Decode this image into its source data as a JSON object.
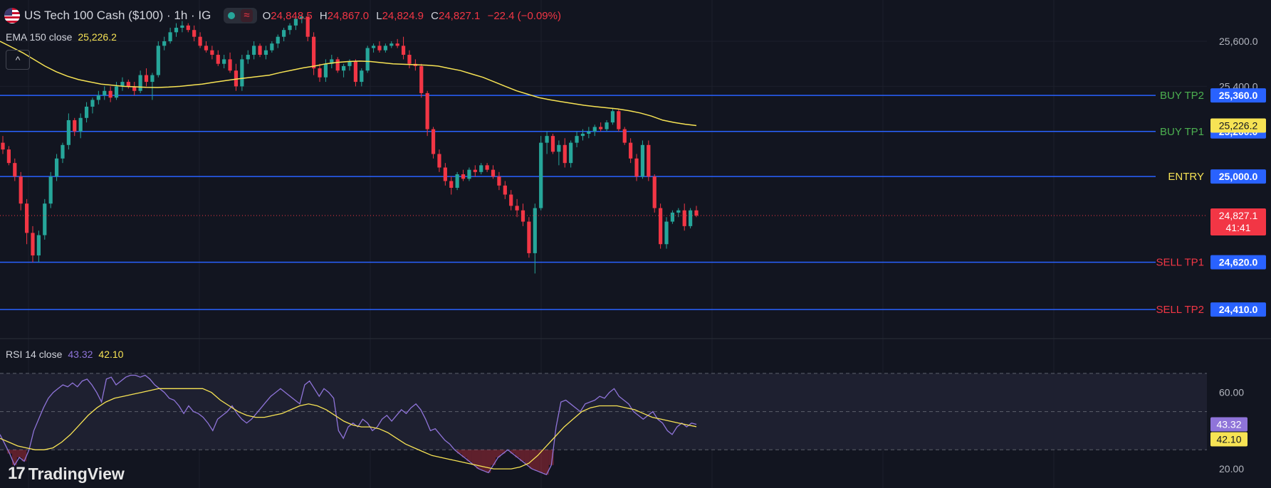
{
  "header": {
    "title": "US Tech 100 Cash ($100) · 1h · IG",
    "open_label": "O",
    "open": "24,848.5",
    "high_label": "H",
    "high": "24,867.0",
    "low_label": "L",
    "low": "24,824.9",
    "close_label": "C",
    "close": "24,827.1",
    "change": "−22.4 (−0.09%)",
    "wave_icon": "≈",
    "collapse_icon": "^"
  },
  "ema": {
    "label": "EMA 150 close",
    "value": "25,226.2"
  },
  "rsi": {
    "label": "RSI 14 close",
    "value": "43.32",
    "ma_value": "42.10"
  },
  "logo": {
    "mark": "17",
    "text": "TradingView"
  },
  "colors": {
    "bg": "#121520",
    "up": "#26a69a",
    "down": "#f23645",
    "level": "#2962ff",
    "ema": "#f7e354",
    "rsi": "#8f74d9",
    "rsi_ma": "#f7e354"
  },
  "chart_data": {
    "type": "candlestick",
    "timeframe": "1h",
    "ylim": [
      24300,
      25720
    ],
    "y_ticks": [
      25600,
      25400
    ],
    "y_tick_labels": [
      "25,600.0",
      "25,400.0"
    ],
    "levels": [
      {
        "name": "BUY TP2",
        "value": 25360,
        "label": "25,360.0",
        "name_color": "#4caf50"
      },
      {
        "name": "BUY TP1",
        "value": 25200,
        "label": "25,200.0",
        "name_color": "#4caf50"
      },
      {
        "name": "ENTRY",
        "value": 25000,
        "label": "25,000.0",
        "name_color": "#f7e354"
      },
      {
        "name": "SELL TP1",
        "value": 24620,
        "label": "24,620.0",
        "name_color": "#f23645"
      },
      {
        "name": "SELL TP2",
        "value": 24410,
        "label": "24,410.0",
        "name_color": "#f23645"
      }
    ],
    "ema_label": "25,226.2",
    "ema_value": 25226.2,
    "last_price": 24827.1,
    "last_price_label": "24,827.1",
    "countdown": "41:41",
    "candles": [
      [
        25150,
        25180,
        25100,
        25120
      ],
      [
        25120,
        25135,
        25050,
        25060
      ],
      [
        25060,
        25080,
        24980,
        25000
      ],
      [
        25000,
        25020,
        24850,
        24880
      ],
      [
        24880,
        24900,
        24700,
        24750
      ],
      [
        24750,
        24780,
        24620,
        24650
      ],
      [
        24650,
        24760,
        24620,
        24740
      ],
      [
        24740,
        24900,
        24720,
        24880
      ],
      [
        24880,
        25020,
        24860,
        25000
      ],
      [
        25000,
        25100,
        24980,
        25080
      ],
      [
        25080,
        25150,
        25060,
        25140
      ],
      [
        25140,
        25280,
        25120,
        25250
      ],
      [
        25250,
        25260,
        25180,
        25200
      ],
      [
        25200,
        25280,
        25170,
        25260
      ],
      [
        25260,
        25330,
        25240,
        25310
      ],
      [
        25310,
        25350,
        25280,
        25340
      ],
      [
        25340,
        25380,
        25320,
        25360
      ],
      [
        25360,
        25400,
        25340,
        25380
      ],
      [
        25380,
        25400,
        25330,
        25350
      ],
      [
        25350,
        25420,
        25340,
        25400
      ],
      [
        25400,
        25440,
        25380,
        25420
      ],
      [
        25420,
        25430,
        25390,
        25400
      ],
      [
        25400,
        25420,
        25360,
        25380
      ],
      [
        25380,
        25470,
        25370,
        25450
      ],
      [
        25450,
        25480,
        25400,
        25420
      ],
      [
        25420,
        25460,
        25340,
        25450
      ],
      [
        25450,
        25600,
        25440,
        25580
      ],
      [
        25580,
        25620,
        25560,
        25600
      ],
      [
        25600,
        25660,
        25590,
        25640
      ],
      [
        25640,
        25680,
        25620,
        25660
      ],
      [
        25660,
        25690,
        25640,
        25670
      ],
      [
        25670,
        25680,
        25640,
        25650
      ],
      [
        25650,
        25670,
        25600,
        25620
      ],
      [
        25620,
        25640,
        25570,
        25580
      ],
      [
        25580,
        25600,
        25550,
        25560
      ],
      [
        25560,
        25580,
        25520,
        25540
      ],
      [
        25540,
        25560,
        25490,
        25500
      ],
      [
        25500,
        25540,
        25480,
        25520
      ],
      [
        25520,
        25550,
        25460,
        25470
      ],
      [
        25470,
        25500,
        25380,
        25400
      ],
      [
        25400,
        25540,
        25380,
        25520
      ],
      [
        25520,
        25560,
        25500,
        25540
      ],
      [
        25540,
        25600,
        25520,
        25580
      ],
      [
        25580,
        25590,
        25530,
        25540
      ],
      [
        25540,
        25580,
        25520,
        25560
      ],
      [
        25560,
        25600,
        25550,
        25590
      ],
      [
        25590,
        25630,
        25570,
        25620
      ],
      [
        25620,
        25660,
        25600,
        25650
      ],
      [
        25650,
        25680,
        25630,
        25670
      ],
      [
        25670,
        25710,
        25650,
        25700
      ],
      [
        25700,
        25720,
        25680,
        25710
      ],
      [
        25710,
        25700,
        25600,
        25620
      ],
      [
        25620,
        25640,
        25450,
        25480
      ],
      [
        25480,
        25500,
        25420,
        25440
      ],
      [
        25440,
        25520,
        25420,
        25500
      ],
      [
        25500,
        25540,
        25480,
        25520
      ],
      [
        25520,
        25530,
        25460,
        25470
      ],
      [
        25470,
        25500,
        25440,
        25490
      ],
      [
        25490,
        25520,
        25470,
        25510
      ],
      [
        25510,
        25520,
        25400,
        25420
      ],
      [
        25420,
        25480,
        25400,
        25470
      ],
      [
        25470,
        25580,
        25460,
        25570
      ],
      [
        25570,
        25590,
        25550,
        25580
      ],
      [
        25580,
        25600,
        25550,
        25560
      ],
      [
        25560,
        25590,
        25550,
        25580
      ],
      [
        25580,
        25600,
        25570,
        25590
      ],
      [
        25590,
        25610,
        25570,
        25580
      ],
      [
        25580,
        25620,
        25520,
        25540
      ],
      [
        25540,
        25560,
        25480,
        25500
      ],
      [
        25500,
        25520,
        25470,
        25490
      ],
      [
        25490,
        25500,
        25350,
        25370
      ],
      [
        25370,
        25380,
        25180,
        25210
      ],
      [
        25210,
        25220,
        25080,
        25100
      ],
      [
        25100,
        25120,
        25020,
        25040
      ],
      [
        25040,
        25060,
        24960,
        24980
      ],
      [
        24980,
        25000,
        24920,
        24950
      ],
      [
        24950,
        25020,
        24940,
        25010
      ],
      [
        25010,
        25030,
        24980,
        24990
      ],
      [
        24990,
        25040,
        24980,
        25030
      ],
      [
        25030,
        25050,
        25000,
        25020
      ],
      [
        25020,
        25060,
        25010,
        25050
      ],
      [
        25050,
        25060,
        25020,
        25030
      ],
      [
        25030,
        25050,
        24990,
        25000
      ],
      [
        25000,
        25020,
        24940,
        24960
      ],
      [
        24960,
        24980,
        24900,
        24920
      ],
      [
        24920,
        24940,
        24850,
        24870
      ],
      [
        24870,
        24900,
        24820,
        24850
      ],
      [
        24850,
        24880,
        24780,
        24800
      ],
      [
        24800,
        24820,
        24640,
        24660
      ],
      [
        24660,
        24880,
        24570,
        24860
      ],
      [
        24860,
        25180,
        24850,
        25150
      ],
      [
        25150,
        25200,
        25100,
        25180
      ],
      [
        25180,
        25190,
        25100,
        25110
      ],
      [
        25110,
        25160,
        25050,
        25140
      ],
      [
        25140,
        25170,
        25040,
        25060
      ],
      [
        25060,
        25160,
        25040,
        25150
      ],
      [
        25150,
        25200,
        25130,
        25180
      ],
      [
        25180,
        25210,
        25160,
        25190
      ],
      [
        25190,
        25220,
        25170,
        25200
      ],
      [
        25200,
        25230,
        25180,
        25220
      ],
      [
        25220,
        25240,
        25200,
        25210
      ],
      [
        25210,
        25250,
        25200,
        25240
      ],
      [
        25240,
        25300,
        25230,
        25290
      ],
      [
        25290,
        25300,
        25200,
        25210
      ],
      [
        25210,
        25220,
        25140,
        25150
      ],
      [
        25150,
        25170,
        25060,
        25080
      ],
      [
        25080,
        25100,
        24980,
        25000
      ],
      [
        25000,
        25160,
        24990,
        25140
      ],
      [
        25140,
        25160,
        24980,
        25000
      ],
      [
        25000,
        25010,
        24840,
        24860
      ],
      [
        24860,
        24880,
        24680,
        24700
      ],
      [
        24700,
        24820,
        24680,
        24800
      ],
      [
        24800,
        24850,
        24790,
        24840
      ],
      [
        24840,
        24860,
        24820,
        24850
      ],
      [
        24850,
        24880,
        24760,
        24780
      ],
      [
        24780,
        24860,
        24770,
        24850
      ],
      [
        24850,
        24870,
        24820,
        24827
      ]
    ],
    "ema_series": [
      25600,
      25575,
      25550,
      25520,
      25490,
      25465,
      25445,
      25430,
      25420,
      25410,
      25405,
      25400,
      25398,
      25396,
      25395,
      25397,
      25400,
      25405,
      25410,
      25418,
      25425,
      25432,
      25438,
      25444,
      25450,
      25462,
      25472,
      25482,
      25490,
      25500,
      25506,
      25510,
      25512,
      25510,
      25505,
      25500,
      25498,
      25496,
      25494,
      25490,
      25480,
      25470,
      25455,
      25440,
      25420,
      25400,
      25380,
      25365,
      25350,
      25340,
      25332,
      25324,
      25316,
      25310,
      25305,
      25300,
      25292,
      25282,
      25268,
      25250,
      25240,
      25232,
      25226.2
    ],
    "rsi": {
      "label": "RSI 14 close",
      "ylim": [
        10,
        80
      ],
      "bands": [
        30,
        50,
        70
      ],
      "tick_values": [
        60,
        20
      ],
      "tick_labels": [
        "60.00",
        "20.00"
      ],
      "series": [
        38,
        33,
        28,
        22,
        26,
        24,
        30,
        40,
        46,
        52,
        57,
        60,
        62,
        64,
        63,
        65,
        63,
        66,
        67,
        64,
        60,
        55,
        67,
        68,
        64,
        66,
        68,
        69,
        69,
        68,
        69,
        67,
        64,
        62,
        60,
        57,
        56,
        53,
        49,
        53,
        50,
        49,
        47,
        44,
        40,
        46,
        48,
        50,
        53,
        49,
        46,
        44,
        46,
        49,
        52,
        55,
        58,
        60,
        62,
        60,
        58,
        56,
        54,
        64,
        66,
        62,
        58,
        62,
        60,
        57,
        40,
        36,
        42,
        44,
        42,
        46,
        44,
        40,
        42,
        46,
        48,
        45,
        48,
        51,
        49,
        52,
        54,
        51,
        46,
        40,
        41,
        38,
        35,
        33,
        30,
        28,
        26,
        24,
        22,
        20,
        19,
        18,
        22,
        26,
        28,
        30,
        28,
        26,
        24,
        22,
        20,
        19,
        18,
        17,
        22,
        42,
        55,
        56,
        54,
        52,
        50,
        54,
        55,
        56,
        58,
        57,
        60,
        62,
        58,
        56,
        54,
        50,
        48,
        46,
        48,
        50,
        46,
        44,
        40,
        38,
        42,
        44,
        42,
        44,
        43.32
      ],
      "ma_series": [
        36,
        34,
        32,
        31,
        30,
        30,
        31,
        34,
        38,
        43,
        48,
        52,
        55,
        57,
        58,
        59,
        60,
        61,
        62,
        62,
        62,
        62,
        62,
        62,
        60,
        56,
        53,
        50,
        48,
        47,
        47,
        48,
        49,
        51,
        53,
        54,
        53,
        51,
        48,
        45,
        43,
        42,
        42,
        41,
        39,
        36,
        33,
        31,
        29,
        27,
        26,
        25,
        24,
        23,
        22,
        21,
        20,
        20,
        20,
        21,
        23,
        27,
        32,
        37,
        42,
        46,
        50,
        52,
        53,
        53,
        53,
        52,
        51,
        49,
        47,
        46,
        45,
        44,
        43,
        42.1
      ]
    }
  }
}
